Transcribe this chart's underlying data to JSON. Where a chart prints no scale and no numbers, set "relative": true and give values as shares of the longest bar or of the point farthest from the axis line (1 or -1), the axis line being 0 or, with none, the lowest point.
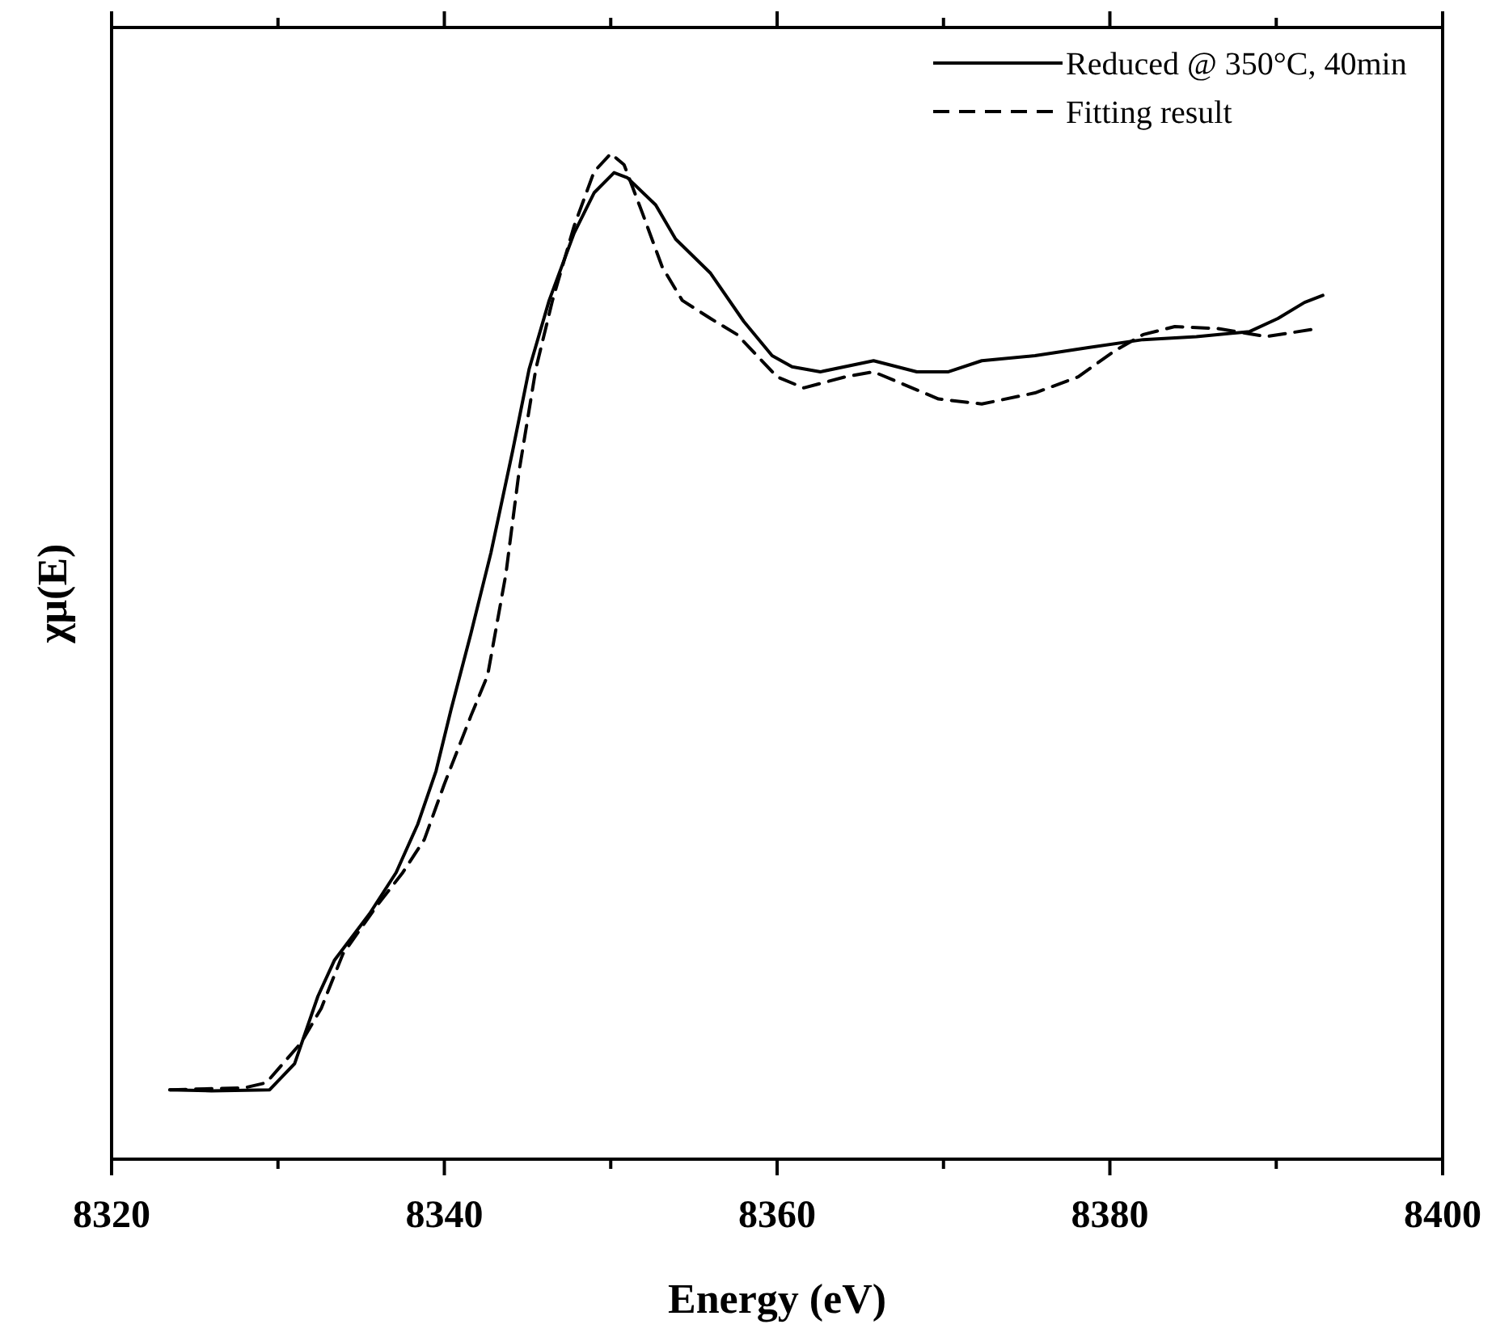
{
  "chart_data": {
    "type": "line",
    "relative": true,
    "xlabel": "Energy (eV)",
    "ylabel": "χμ(E)",
    "xlim": [
      8320,
      8400
    ],
    "xticks": [
      8320,
      {
        "value": 8330,
        "label": null
      },
      8340,
      {
        "value": 8350,
        "label": null
      },
      8360,
      {
        "value": 8370,
        "label": null
      },
      8380,
      {
        "value": 8390,
        "label": null
      },
      8400
    ],
    "legend": "top right",
    "grid": false,
    "series": [
      {
        "name": "Reduced @ 350°C, 40min",
        "color": "#000000",
        "line_style": "solid",
        "x": [
          8323.5,
          8326,
          8329.5,
          8331.0,
          8332.4,
          8333.4,
          8335.5,
          8337.1,
          8338.4,
          8339.5,
          8340.4,
          8341.6,
          8342.8,
          8344.1,
          8345.1,
          8346.3,
          8347.8,
          8349.0,
          8350.2,
          8351.0,
          8352.7,
          8353.9,
          8356.0,
          8358.0,
          8359.7,
          8360.9,
          8362.6,
          8365.8,
          8368.4,
          8370.3,
          8372.3,
          8375.5,
          8378.7,
          8382.0,
          8385.2,
          8388.4,
          8390.1,
          8391.7,
          8392.8
        ],
        "values": [
          0.069,
          0.068,
          0.069,
          0.095,
          0.162,
          0.198,
          0.244,
          0.285,
          0.333,
          0.386,
          0.447,
          0.523,
          0.603,
          0.704,
          0.786,
          0.854,
          0.921,
          0.961,
          0.981,
          0.976,
          0.949,
          0.915,
          0.881,
          0.833,
          0.799,
          0.788,
          0.783,
          0.794,
          0.783,
          0.783,
          0.794,
          0.799,
          0.807,
          0.815,
          0.818,
          0.823,
          0.836,
          0.852,
          0.859
        ]
      },
      {
        "name": "Fitting result",
        "color": "#000000",
        "line_style": "dashed",
        "x": [
          8323.5,
          8328,
          8329.3,
          8331.4,
          8332.6,
          8333.9,
          8335.9,
          8337.5,
          8338.8,
          8340.0,
          8341.6,
          8342.6,
          8343.7,
          8344.5,
          8345.5,
          8346.5,
          8347.8,
          8349.0,
          8350.0,
          8350.8,
          8351.9,
          8353.1,
          8354.3,
          8356.0,
          8357.6,
          8360.0,
          8361.6,
          8364.1,
          8365.8,
          8369.7,
          8372.3,
          8375.5,
          8378.1,
          8380.3,
          8382.0,
          8383.9,
          8386.5,
          8389.4,
          8392.5
        ],
        "values": [
          0.069,
          0.071,
          0.076,
          0.116,
          0.15,
          0.204,
          0.251,
          0.285,
          0.318,
          0.373,
          0.441,
          0.481,
          0.582,
          0.685,
          0.786,
          0.854,
          0.928,
          0.982,
          1.0,
          0.989,
          0.941,
          0.887,
          0.854,
          0.836,
          0.82,
          0.778,
          0.767,
          0.778,
          0.783,
          0.756,
          0.751,
          0.762,
          0.778,
          0.804,
          0.82,
          0.828,
          0.826,
          0.818,
          0.826
        ]
      }
    ]
  }
}
